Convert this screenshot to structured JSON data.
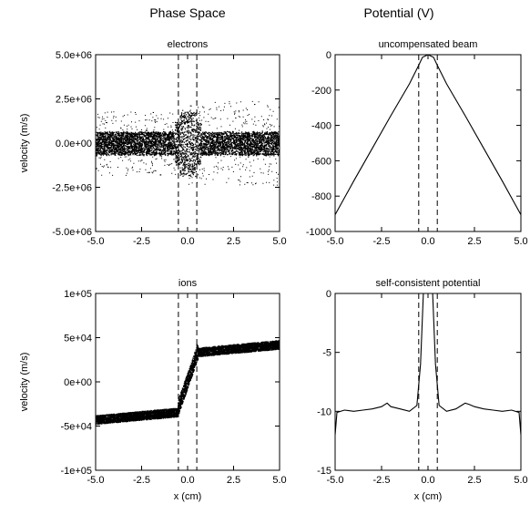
{
  "headings": {
    "left": "Phase Space",
    "right": "Potential (V)"
  },
  "chart_data": [
    {
      "type": "scatter",
      "title": "electrons",
      "xlabel": "",
      "ylabel": "velocity (m/s)",
      "xlim": [
        -5,
        5
      ],
      "ylim": [
        -5000000,
        5000000
      ],
      "xticks": [
        -5,
        -2.5,
        0,
        2.5,
        5
      ],
      "xtick_labels": [
        "-5.0",
        "-2.5",
        "0.0",
        "2.5",
        "5.0"
      ],
      "yticks": [
        5000000,
        2500000,
        0,
        -2500000,
        -5000000
      ],
      "ytick_labels": [
        "5.0e+06",
        "2.5e+06",
        "0.0e+00",
        "-2.5e+06",
        "-5.0e+06"
      ],
      "vlines": [
        -0.5,
        0.5
      ],
      "description_of_distribution": {
        "band_halfwidth": 700000,
        "core_peak": 2000000,
        "core_halfwidth_x": 0.4
      },
      "grid": false
    },
    {
      "type": "line",
      "title": "uncompensated beam",
      "xlabel": "",
      "ylabel": "",
      "xlim": [
        -5,
        5
      ],
      "ylim": [
        -1000,
        0
      ],
      "xticks": [
        -5,
        -2.5,
        0,
        2.5,
        5
      ],
      "xtick_labels": [
        "-5.0",
        "-2.5",
        "0.0",
        "2.5",
        "5.0"
      ],
      "yticks": [
        0,
        -200,
        -400,
        -600,
        -800,
        -1000
      ],
      "ytick_labels": [
        "0",
        "-200",
        "-400",
        "-600",
        "-800",
        "-1000"
      ],
      "vlines": [
        -0.5,
        0.5
      ],
      "series": [
        {
          "x": [
            -5,
            -4,
            -3,
            -2,
            -1,
            -0.5,
            -0.3,
            0,
            0.3,
            0.5,
            1,
            2,
            3,
            4,
            5
          ],
          "y": [
            -905,
            -715,
            -530,
            -345,
            -165,
            -60,
            -15,
            0,
            -15,
            -60,
            -165,
            -345,
            -530,
            -715,
            -905
          ]
        }
      ],
      "grid": false
    },
    {
      "type": "scatter",
      "title": "ions",
      "xlabel": "x (cm)",
      "ylabel": "velocity (m/s)",
      "xlim": [
        -5,
        5
      ],
      "ylim": [
        -100000,
        100000
      ],
      "xticks": [
        -5,
        -2.5,
        0,
        2.5,
        5
      ],
      "xtick_labels": [
        "-5.0",
        "-2.5",
        "0.0",
        "2.5",
        "5.0"
      ],
      "yticks": [
        100000,
        50000,
        0,
        -50000,
        -100000
      ],
      "ytick_labels": [
        "1e+05",
        "5e+04",
        "0e+00",
        "-5e+04",
        "-1e+05"
      ],
      "vlines": [
        -0.5,
        0.5
      ],
      "grid": false
    },
    {
      "type": "line",
      "title": "self-consistent potential",
      "xlabel": "x (cm)",
      "ylabel": "",
      "xlim": [
        -5,
        5
      ],
      "ylim": [
        -15,
        0
      ],
      "xticks": [
        -5,
        -2.5,
        0,
        2.5,
        5
      ],
      "xtick_labels": [
        "-5.0",
        "-2.5",
        "0.0",
        "2.5",
        "5.0"
      ],
      "yticks": [
        0,
        -5,
        -10,
        -15
      ],
      "ytick_labels": [
        "0",
        "-5",
        "-10",
        "-15"
      ],
      "vlines": [
        -0.5,
        0.5
      ],
      "series": [
        {
          "x": [
            -5,
            -4.9,
            -4.5,
            -4,
            -3.5,
            -3,
            -2.5,
            -2.2,
            -2,
            -1.5,
            -1,
            -0.6,
            -0.4,
            -0.25,
            -0.15,
            0,
            0.15,
            0.25,
            0.4,
            0.6,
            1,
            1.5,
            2,
            2.2,
            2.5,
            3,
            3.5,
            4,
            4.5,
            4.9,
            5
          ],
          "y": [
            -12,
            -10.1,
            -9.9,
            -10.0,
            -9.9,
            -9.8,
            -9.6,
            -9.3,
            -9.6,
            -9.8,
            -10.0,
            -9.5,
            -6,
            0,
            0.3,
            0.2,
            0.3,
            0,
            -6,
            -9.5,
            -10.0,
            -9.8,
            -9.3,
            -9.4,
            -9.6,
            -9.8,
            -9.9,
            -10.0,
            -9.9,
            -10.1,
            -12
          ]
        }
      ],
      "grid": false
    }
  ]
}
